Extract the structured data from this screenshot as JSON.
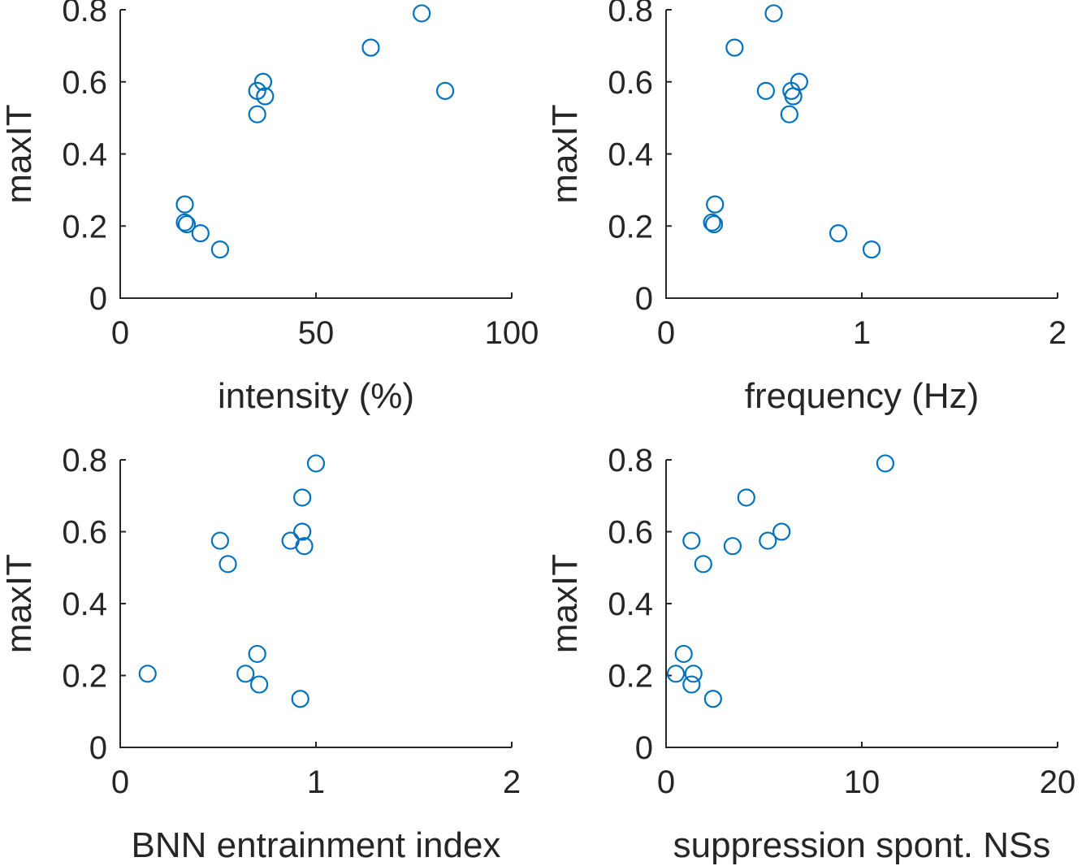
{
  "marker_color": "#0072BD",
  "axis_color": "#262626",
  "chart_data": [
    {
      "type": "scatter",
      "xlabel": "intensity (%)",
      "ylabel": "maxIT",
      "xlim": [
        0,
        100
      ],
      "ylim": [
        0,
        0.8
      ],
      "xticks": [
        "0",
        "50",
        "100"
      ],
      "yticks": [
        "0",
        "0.2",
        "0.4",
        "0.6",
        "0.8"
      ],
      "points": [
        {
          "x": 16.5,
          "y": 0.26
        },
        {
          "x": 16.5,
          "y": 0.21
        },
        {
          "x": 17.0,
          "y": 0.205
        },
        {
          "x": 20.5,
          "y": 0.18
        },
        {
          "x": 25.5,
          "y": 0.135
        },
        {
          "x": 35.0,
          "y": 0.575
        },
        {
          "x": 36.5,
          "y": 0.6
        },
        {
          "x": 37.0,
          "y": 0.56
        },
        {
          "x": 35.0,
          "y": 0.51
        },
        {
          "x": 64.0,
          "y": 0.695
        },
        {
          "x": 77.0,
          "y": 0.79
        },
        {
          "x": 83.0,
          "y": 0.575
        }
      ]
    },
    {
      "type": "scatter",
      "xlabel": "frequency (Hz)",
      "ylabel": "maxIT",
      "xlim": [
        0,
        2
      ],
      "ylim": [
        0,
        0.8
      ],
      "xticks": [
        "0",
        "1",
        "2"
      ],
      "yticks": [
        "0",
        "0.2",
        "0.4",
        "0.6",
        "0.8"
      ],
      "points": [
        {
          "x": 0.25,
          "y": 0.26
        },
        {
          "x": 0.235,
          "y": 0.21
        },
        {
          "x": 0.245,
          "y": 0.205
        },
        {
          "x": 0.35,
          "y": 0.695
        },
        {
          "x": 0.55,
          "y": 0.79
        },
        {
          "x": 0.51,
          "y": 0.575
        },
        {
          "x": 0.64,
          "y": 0.575
        },
        {
          "x": 0.68,
          "y": 0.6
        },
        {
          "x": 0.65,
          "y": 0.56
        },
        {
          "x": 0.63,
          "y": 0.51
        },
        {
          "x": 0.88,
          "y": 0.18
        },
        {
          "x": 1.05,
          "y": 0.135
        }
      ]
    },
    {
      "type": "scatter",
      "xlabel": "BNN entrainment index",
      "ylabel": "maxIT",
      "xlim": [
        0,
        2
      ],
      "ylim": [
        0,
        0.8
      ],
      "xticks": [
        "0",
        "1",
        "2"
      ],
      "yticks": [
        "0",
        "0.2",
        "0.4",
        "0.6",
        "0.8"
      ],
      "points": [
        {
          "x": 0.14,
          "y": 0.205
        },
        {
          "x": 0.51,
          "y": 0.575
        },
        {
          "x": 0.55,
          "y": 0.51
        },
        {
          "x": 0.64,
          "y": 0.205
        },
        {
          "x": 0.7,
          "y": 0.26
        },
        {
          "x": 0.71,
          "y": 0.175
        },
        {
          "x": 0.87,
          "y": 0.575
        },
        {
          "x": 0.92,
          "y": 0.135
        },
        {
          "x": 0.93,
          "y": 0.6
        },
        {
          "x": 0.94,
          "y": 0.56
        },
        {
          "x": 0.93,
          "y": 0.695
        },
        {
          "x": 1.0,
          "y": 0.79
        }
      ]
    },
    {
      "type": "scatter",
      "xlabel": "suppression spont. NSs",
      "ylabel": "maxIT",
      "xlim": [
        0,
        20
      ],
      "ylim": [
        0,
        0.8
      ],
      "xticks": [
        "0",
        "10",
        "20"
      ],
      "yticks": [
        "0",
        "0.2",
        "0.4",
        "0.6",
        "0.8"
      ],
      "points": [
        {
          "x": 0.5,
          "y": 0.205
        },
        {
          "x": 0.9,
          "y": 0.26
        },
        {
          "x": 1.3,
          "y": 0.575
        },
        {
          "x": 1.4,
          "y": 0.205
        },
        {
          "x": 1.3,
          "y": 0.175
        },
        {
          "x": 1.9,
          "y": 0.51
        },
        {
          "x": 2.4,
          "y": 0.135
        },
        {
          "x": 3.4,
          "y": 0.56
        },
        {
          "x": 4.1,
          "y": 0.695
        },
        {
          "x": 5.2,
          "y": 0.575
        },
        {
          "x": 5.9,
          "y": 0.6
        },
        {
          "x": 11.2,
          "y": 0.79
        }
      ]
    }
  ]
}
